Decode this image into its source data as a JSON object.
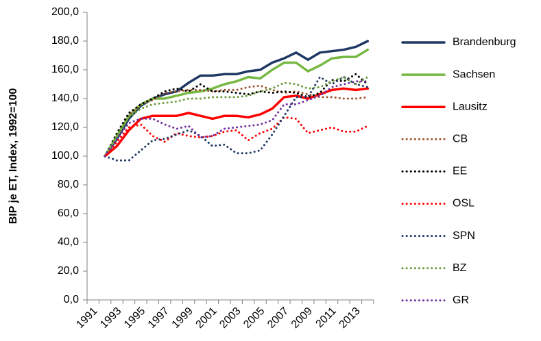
{
  "chart_data": {
    "type": "line",
    "y_label": "BIP je ET, Index, 1992=100",
    "categories": [
      "1991",
      null,
      "1993",
      null,
      "1995",
      null,
      "1997",
      null,
      "1999",
      null,
      "2001",
      null,
      "2003",
      null,
      "2005",
      null,
      "2007",
      null,
      "2009",
      null,
      "2011",
      null,
      "2013",
      null
    ],
    "ylim": [
      0,
      200
    ],
    "yticks": [
      {
        "value": 0,
        "label": "0,0"
      },
      {
        "value": 20,
        "label": "20,0"
      },
      {
        "value": 40,
        "label": "40,0"
      },
      {
        "value": 60,
        "label": "60,0"
      },
      {
        "value": 80,
        "label": "80,0"
      },
      {
        "value": 100,
        "label": "100,0"
      },
      {
        "value": 120,
        "label": "120,0"
      },
      {
        "value": 140,
        "label": "140,0"
      },
      {
        "value": 160,
        "label": "160,0"
      },
      {
        "value": 180,
        "label": "180,0"
      },
      {
        "value": 200,
        "label": "200,0"
      }
    ],
    "grid": false,
    "legend": "right",
    "series": [
      {
        "name": "Brandenburg",
        "color": "#1f3864",
        "dash": "solid",
        "values": [
          null,
          100,
          112,
          126,
          135,
          140,
          143,
          145,
          151,
          156,
          156,
          157,
          157,
          159,
          160,
          165,
          168,
          172,
          167,
          172,
          173,
          174,
          176,
          180
        ]
      },
      {
        "name": "Sachsen",
        "color": "#77b843",
        "dash": "solid",
        "values": [
          null,
          100,
          114,
          128,
          136,
          140,
          140,
          142,
          144,
          145,
          147,
          150,
          152,
          155,
          154,
          160,
          165,
          165,
          159,
          163,
          168,
          169,
          169,
          174
        ]
      },
      {
        "name": "Lausitz",
        "color": "#ff0000",
        "dash": "solid",
        "values": [
          null,
          100,
          107,
          118,
          126,
          128,
          128,
          128,
          130,
          128,
          126,
          128,
          128,
          127,
          129,
          133,
          141,
          142,
          140,
          143,
          146,
          147,
          146,
          147
        ]
      },
      {
        "name": "CB",
        "color": "#a0522d",
        "dash": "dotted",
        "values": [
          null,
          100,
          113,
          128,
          136,
          139,
          144,
          145,
          146,
          146,
          145,
          146,
          146,
          148,
          149,
          146,
          144,
          145,
          143,
          141,
          141,
          140,
          140,
          141
        ]
      },
      {
        "name": "EE",
        "color": "#000000",
        "dash": "dotted",
        "values": [
          null,
          100,
          116,
          130,
          136,
          140,
          145,
          147,
          145,
          150,
          145,
          145,
          144,
          143,
          145,
          144,
          145,
          144,
          141,
          144,
          153,
          152,
          157,
          150
        ]
      },
      {
        "name": "OSL",
        "color": "#ff0000",
        "dash": "dotted",
        "values": [
          null,
          100,
          110,
          120,
          122,
          114,
          110,
          116,
          114,
          113,
          114,
          117,
          118,
          111,
          116,
          119,
          127,
          126,
          116,
          118,
          120,
          117,
          117,
          121
        ]
      },
      {
        "name": "SPN",
        "color": "#1f3864",
        "dash": "dotted",
        "values": [
          null,
          100,
          97,
          97,
          104,
          111,
          112,
          115,
          118,
          114,
          107,
          108,
          102,
          102,
          104,
          115,
          128,
          141,
          141,
          155,
          150,
          155,
          150,
          148
        ]
      },
      {
        "name": "BZ",
        "color": "#6a9a3a",
        "dash": "dotted",
        "values": [
          null,
          100,
          114,
          127,
          133,
          136,
          137,
          138,
          140,
          140,
          141,
          141,
          141,
          142,
          145,
          147,
          151,
          150,
          147,
          148,
          152,
          155,
          150,
          155
        ]
      },
      {
        "name": "GR",
        "color": "#7030a0",
        "dash": "dotted",
        "values": [
          null,
          100,
          112,
          123,
          126,
          126,
          122,
          119,
          121,
          113,
          114,
          119,
          120,
          121,
          122,
          125,
          136,
          136,
          139,
          142,
          148,
          150,
          152,
          152
        ]
      }
    ]
  }
}
